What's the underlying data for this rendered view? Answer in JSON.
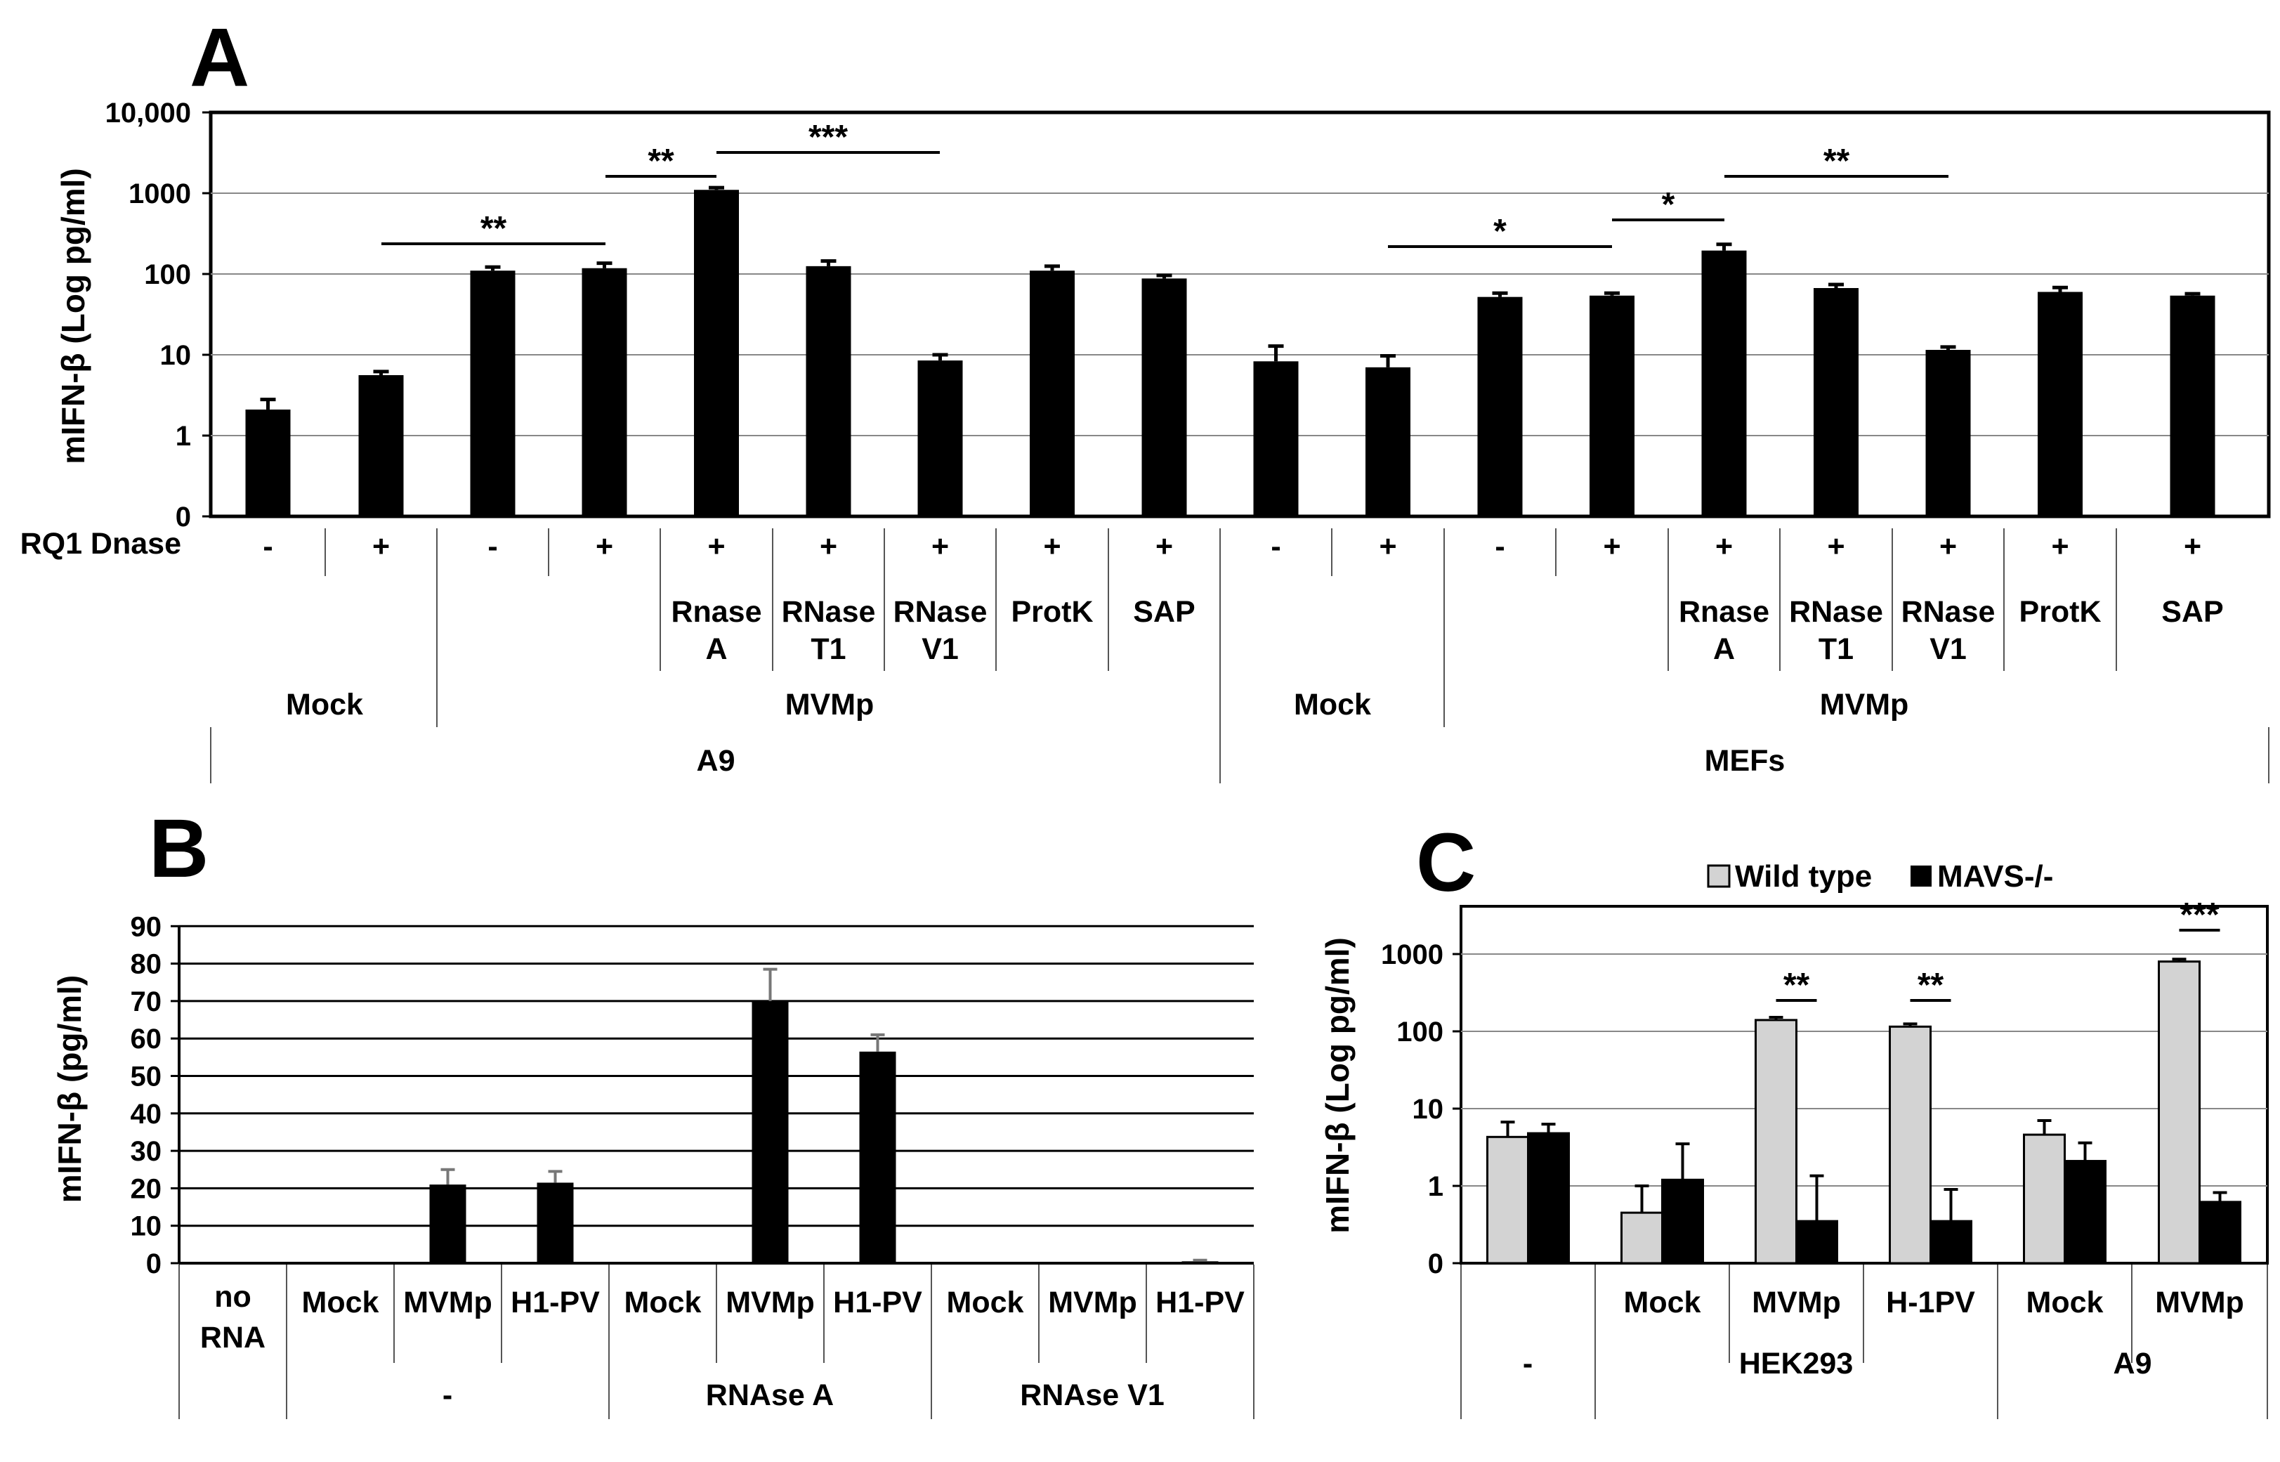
{
  "figure": {
    "panels": [
      "A",
      "B",
      "C"
    ]
  },
  "chart_data": [
    {
      "panel": "A",
      "type": "bar",
      "scale": "log",
      "ylabel": "mIFN-β (Log pg/ml)",
      "yticks": [
        "0",
        "1",
        "10",
        "100",
        "1000",
        "10,000"
      ],
      "row_label": "RQ1 Dnase",
      "bar_color": "#000000",
      "categories": [
        "A9 Mock -",
        "A9 Mock +",
        "A9 MVMp -",
        "A9 MVMp +",
        "A9 MVMp Rnase A",
        "A9 MVMp RNase T1",
        "A9 MVMp RNase V1",
        "A9 MVMp ProtK",
        "A9 MVMp SAP",
        "MEFs Mock -",
        "MEFs Mock +",
        "MEFs MVMp -",
        "MEFs MVMp +",
        "MEFs MVMp Rnase A",
        "MEFs MVMp RNase T1",
        "MEFs MVMp RNase V1",
        "MEFs MVMp ProtK",
        "MEFs MVMp SAP"
      ],
      "values": [
        2.1,
        5.6,
        110,
        118,
        1100,
        125,
        8.5,
        110,
        88,
        8.3,
        7.0,
        52,
        54,
        195,
        67,
        11.5,
        60,
        54
      ],
      "errors": [
        0.7,
        0.6,
        12,
        18,
        70,
        20,
        1.5,
        15,
        8,
        4.5,
        2.7,
        6,
        4,
        38,
        7,
        1.0,
        8,
        3
      ],
      "row1": [
        "-",
        "+",
        "-",
        "+",
        "+",
        "+",
        "+",
        "+",
        "+",
        "-",
        "+",
        "-",
        "+",
        "+",
        "+",
        "+",
        "+",
        "+"
      ],
      "treat_line1": [
        "Rnase",
        "RNase",
        "RNase",
        "ProtK",
        "SAP",
        "Rnase",
        "RNase",
        "RNase",
        "ProtK",
        "SAP"
      ],
      "treat_line2": [
        "A",
        "T1",
        "V1",
        "",
        "",
        "A",
        "T1",
        "V1",
        "",
        ""
      ],
      "groups": [
        "Mock",
        "MVMp",
        "Mock",
        "MVMp"
      ],
      "cells": [
        "A9",
        "MEFs"
      ],
      "significance": [
        "**",
        "**",
        "***",
        "*",
        "*",
        "**"
      ]
    },
    {
      "panel": "B",
      "type": "bar",
      "scale": "linear",
      "ylabel": "mIFN-β (pg/ml)",
      "ylim": [
        0,
        90
      ],
      "yticks": [
        "0",
        "10",
        "20",
        "30",
        "40",
        "50",
        "60",
        "70",
        "80",
        "90"
      ],
      "bar_color": "#000000",
      "categories": [
        "no RNA",
        "- Mock",
        "- MVMp",
        "- H1-PV",
        "RNAse A Mock",
        "RNAse A MVMp",
        "RNAse A H1-PV",
        "RNAse V1 Mock",
        "RNAse V1 MVMp",
        "RNAse V1 H1-PV"
      ],
      "values": [
        0,
        0,
        21,
        21.5,
        0,
        70,
        56.5,
        0,
        0,
        0.5
      ],
      "errors": [
        0,
        0,
        4,
        3,
        0,
        8.5,
        4.5,
        0,
        0,
        0.3
      ],
      "first_label_line1": "no",
      "first_label_line2": "RNA",
      "labels": [
        "Mock",
        "MVMp",
        "H1-PV",
        "Mock",
        "MVMp",
        "H1-PV",
        "Mock",
        "MVMp",
        "H1-PV"
      ],
      "groups": [
        "-",
        "RNAse A",
        "RNAse V1"
      ]
    },
    {
      "panel": "C",
      "type": "bar",
      "scale": "log",
      "ylabel": "mIFN-β (Log pg/ml)",
      "yticks": [
        "0",
        "1",
        "10",
        "100",
        "1000"
      ],
      "categories": [
        "-",
        "HEK293 Mock",
        "HEK293 MVMp",
        "HEK293 H-1PV",
        "A9 Mock",
        "A9 MVMp"
      ],
      "labels": [
        "Mock",
        "MVMp",
        "H-1PV",
        "Mock",
        "MVMp"
      ],
      "groups": [
        "-",
        "HEK293",
        "A9"
      ],
      "legend": "top",
      "series": [
        {
          "name": "Wild type",
          "color": "#d3d3d3",
          "values": [
            4.3,
            0.45,
            140,
            115,
            4.6,
            800
          ],
          "errors": [
            2.4,
            0.55,
            12,
            10,
            2.4,
            60
          ]
        },
        {
          "name": "MAVS-/-",
          "color": "#000000",
          "values": [
            4.8,
            1.2,
            0.35,
            0.35,
            2.1,
            0.62
          ],
          "errors": [
            1.5,
            2.3,
            1.0,
            0.55,
            1.5,
            0.2
          ]
        }
      ],
      "significance": [
        "**",
        "**",
        "***"
      ]
    }
  ]
}
